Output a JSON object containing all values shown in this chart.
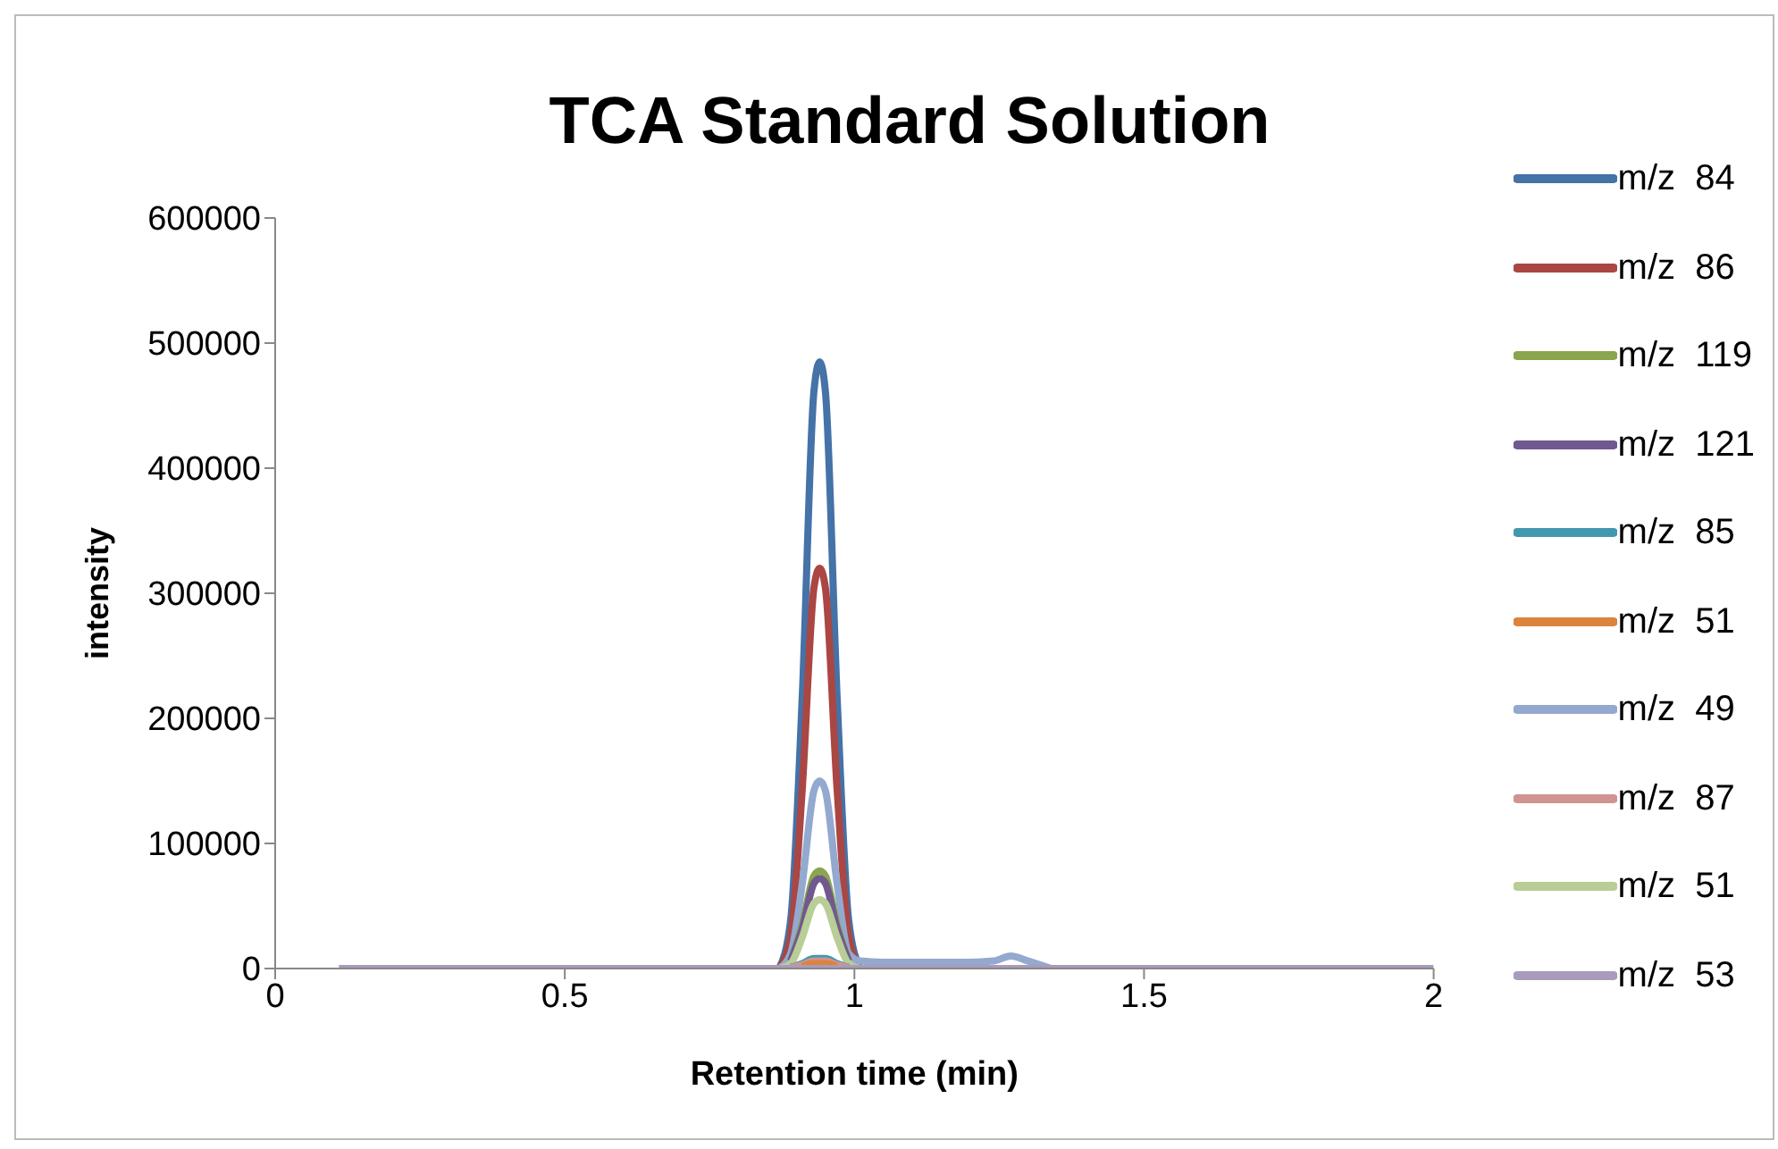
{
  "chart_data": {
    "type": "line",
    "title": "TCA Standard Solution",
    "xlabel": "Retention time (min)",
    "ylabel": "intensity",
    "x": [
      0.11,
      0.87,
      0.89,
      0.91,
      0.93,
      0.94,
      0.95,
      0.97,
      0.99,
      1.01,
      1.05,
      1.2,
      1.24,
      1.27,
      1.3,
      1.34,
      1.5,
      2.0
    ],
    "series": [
      {
        "name": "m/z  84",
        "color": "#4572a7",
        "values": [
          null,
          0,
          39000,
          218000,
          461000,
          485000,
          461000,
          218000,
          39000,
          0,
          null,
          null,
          null,
          null,
          null,
          null,
          null,
          null
        ]
      },
      {
        "name": "m/z  86",
        "color": "#aa4643",
        "values": [
          null,
          0,
          26000,
          144000,
          304000,
          320000,
          304000,
          144000,
          26000,
          0,
          null,
          null,
          null,
          null,
          null,
          null,
          null,
          null
        ]
      },
      {
        "name": "m/z  119",
        "color": "#89a54e",
        "values": [
          null,
          null,
          6000,
          35000,
          74000,
          78000,
          74000,
          35000,
          6000,
          null,
          null,
          null,
          null,
          null,
          null,
          null,
          null,
          null
        ]
      },
      {
        "name": "m/z  121",
        "color": "#71588f",
        "values": [
          null,
          null,
          6000,
          32000,
          68000,
          72000,
          68000,
          32000,
          6000,
          null,
          null,
          null,
          null,
          null,
          null,
          null,
          null,
          null
        ]
      },
      {
        "name": "m/z  85",
        "color": "#4198af",
        "values": [
          null,
          null,
          1000,
          4000,
          8000,
          8000,
          8000,
          4000,
          1000,
          null,
          null,
          null,
          null,
          null,
          null,
          null,
          null,
          null
        ]
      },
      {
        "name": "m/z  51",
        "color": "#db843d",
        "values": [
          null,
          null,
          null,
          2000,
          4000,
          4000,
          4000,
          2000,
          null,
          null,
          null,
          null,
          null,
          null,
          null,
          null,
          null,
          null
        ]
      },
      {
        "name": "m/z  49",
        "color": "#93a9cf",
        "values": [
          null,
          0,
          12000,
          68000,
          142000,
          150000,
          142000,
          68000,
          12000,
          6000,
          5000,
          5000,
          6000,
          10000,
          6000,
          0,
          null,
          null
        ]
      },
      {
        "name": "m/z  87",
        "color": "#d19392",
        "values": [
          null,
          null,
          1000,
          3000,
          6000,
          6000,
          6000,
          3000,
          1000,
          null,
          null,
          null,
          null,
          null,
          null,
          null,
          null,
          null
        ]
      },
      {
        "name": "m/z  51",
        "color": "#b9cd96",
        "values": [
          null,
          0,
          4000,
          25000,
          52000,
          55000,
          52000,
          25000,
          4000,
          0,
          null,
          null,
          null,
          null,
          null,
          null,
          null,
          null
        ]
      },
      {
        "name": "m/z  53",
        "color": "#a99bbd",
        "values": [
          0,
          0,
          0,
          0,
          0,
          0,
          0,
          0,
          0,
          0,
          0,
          0,
          0,
          0,
          0,
          0,
          0,
          0
        ]
      }
    ],
    "xlim": [
      0,
      2
    ],
    "xticks": [
      0,
      0.5,
      1,
      1.5,
      2
    ],
    "ylim": [
      0,
      600000
    ],
    "yticks": [
      0,
      100000,
      200000,
      300000,
      400000,
      500000,
      600000
    ],
    "grid": false,
    "legend": "right",
    "marker": "none",
    "line_style": "solid"
  }
}
